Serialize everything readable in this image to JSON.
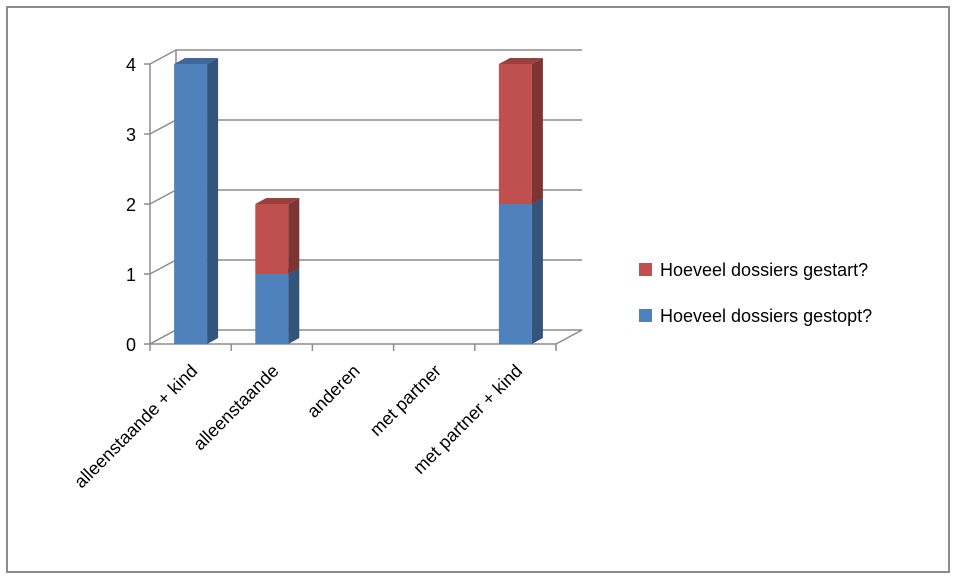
{
  "chart_data": {
    "type": "bar",
    "stacked": true,
    "three_d": true,
    "categories": [
      "alleenstaande + kind",
      "alleenstaande",
      "anderen",
      "met partner",
      "met partner + kind"
    ],
    "series": [
      {
        "name": "Hoeveel dossiers gestopt?",
        "values": [
          4,
          1,
          0,
          0,
          2
        ],
        "color": "#4f81bd"
      },
      {
        "name": "Hoeveel dossiers gestart?",
        "values": [
          0,
          1,
          0,
          0,
          2
        ],
        "color": "#c0504d"
      }
    ],
    "y_ticks": [
      "0",
      "1",
      "2",
      "3",
      "4"
    ],
    "ylim": [
      0,
      4
    ],
    "grid": true,
    "legend_position": "right",
    "legend_order": [
      "Hoeveel dossiers gestart?",
      "Hoeveel dossiers gestopt?"
    ]
  }
}
